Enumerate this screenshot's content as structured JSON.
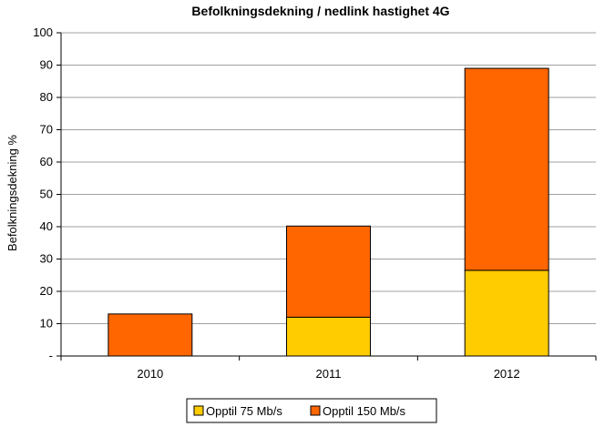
{
  "chart_data": {
    "type": "bar",
    "stacked": true,
    "title": "Befolkningsdekning / nedlink hastighet 4G",
    "xlabel": "",
    "ylabel": "Befolkningsdekning %",
    "categories": [
      "2010",
      "2011",
      "2012"
    ],
    "ylim": [
      0,
      100
    ],
    "yticks": [
      0,
      10,
      20,
      30,
      40,
      50,
      60,
      70,
      80,
      90,
      100
    ],
    "yticklabels": [
      "-",
      "10",
      "20",
      "30",
      "40",
      "50",
      "60",
      "70",
      "80",
      "90",
      "100"
    ],
    "grid": true,
    "legend_position": "bottom",
    "series": [
      {
        "name": "Opptil 75 Mb/s",
        "color": "#FFCC00",
        "values": [
          0,
          12,
          26.5
        ]
      },
      {
        "name": "Opptil 150 Mb/s",
        "color": "#FF6600",
        "values": [
          13,
          28.2,
          62.5
        ]
      }
    ]
  }
}
